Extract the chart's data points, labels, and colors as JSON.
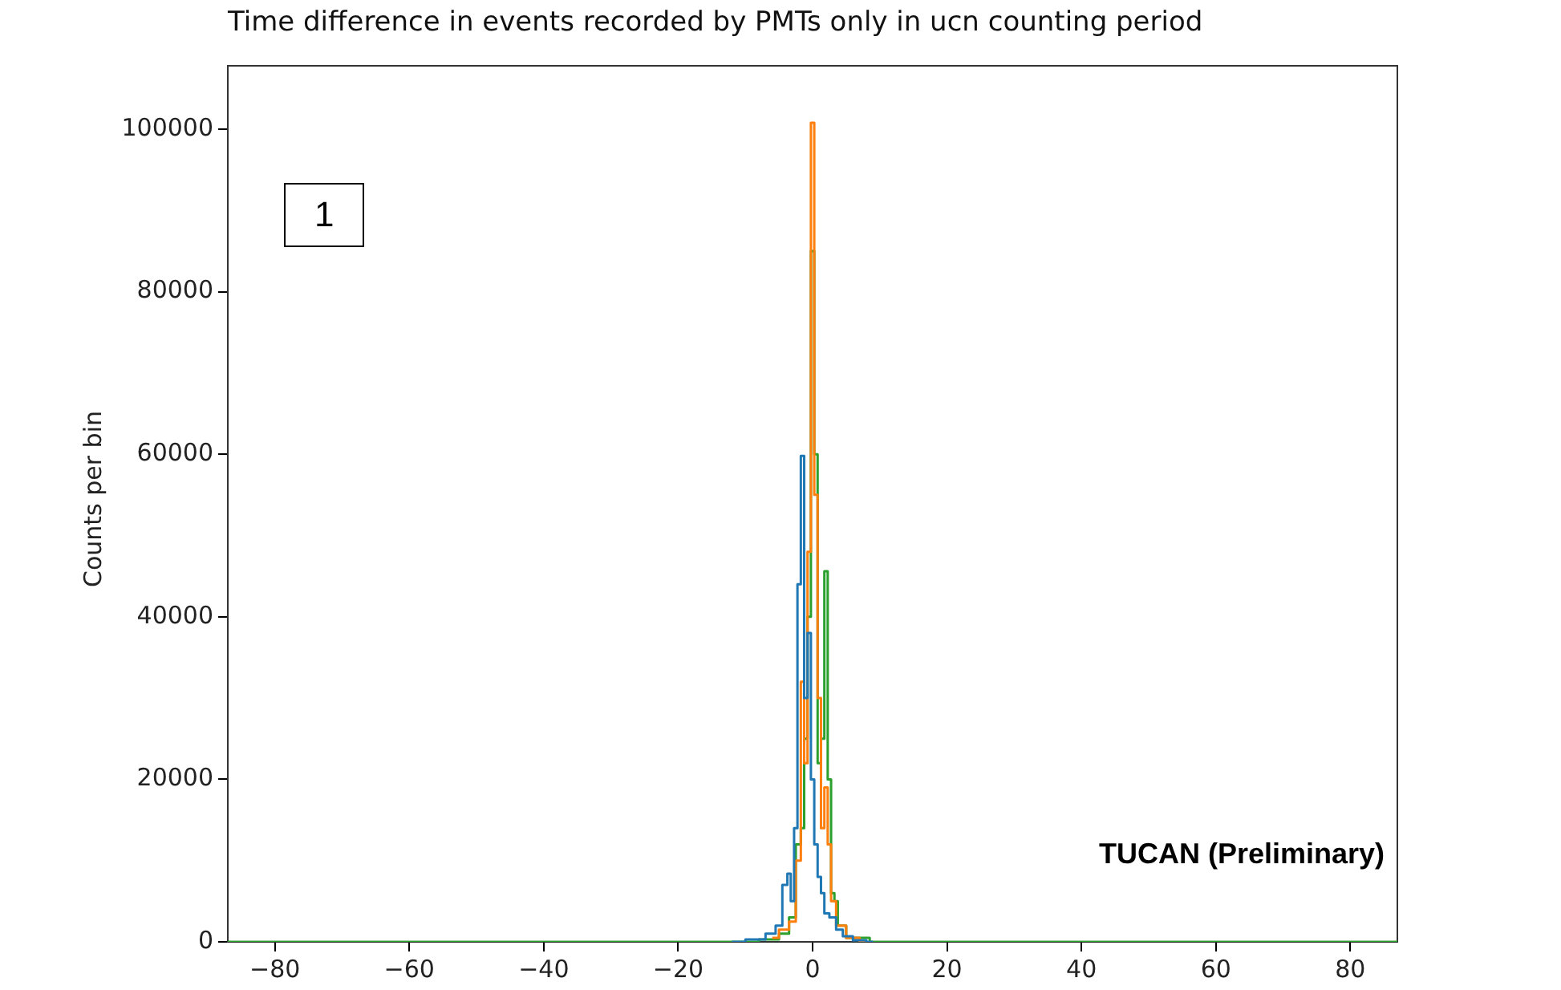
{
  "chart_data": {
    "type": "step",
    "title": "Time difference in events recorded by PMTs only in ucn counting period",
    "ylabel": "Counts per bin",
    "xlim": [
      -87,
      87
    ],
    "xticks": [
      -80,
      -60,
      -40,
      -20,
      0,
      20,
      40,
      60,
      80
    ],
    "ylim": [
      0,
      107800
    ],
    "yticks": [
      0,
      20000,
      40000,
      60000,
      80000,
      100000
    ],
    "grid": false,
    "legend": false,
    "marker": "none",
    "annotations": [
      "1",
      "TUCAN (Preliminary)"
    ],
    "series": [
      {
        "color": "#1f77b4",
        "x": [
          -12,
          -8,
          -6,
          -5,
          -4,
          -3.5,
          -3,
          -2.5,
          -2,
          -1.5,
          -1,
          -0.5,
          0,
          0.5,
          1,
          1.5,
          2,
          3,
          4,
          5,
          7,
          9
        ],
        "values": [
          0,
          300,
          1000,
          2000,
          7000,
          8400,
          5000,
          14000,
          44000,
          59800,
          30000,
          38000,
          20000,
          12000,
          8000,
          6000,
          3500,
          3000,
          1500,
          700,
          200,
          0
        ]
      },
      {
        "color": "#ff7f0e",
        "x": [
          -6,
          -4,
          -3,
          -2,
          -1.5,
          -1,
          -0.5,
          0,
          0.5,
          1,
          1.5,
          2,
          2.5,
          3,
          4,
          6,
          8
        ],
        "values": [
          500,
          1500,
          2500,
          10000,
          32000,
          22000,
          48000,
          100800,
          55000,
          30000,
          14000,
          19000,
          12000,
          5000,
          2000,
          500,
          0
        ]
      },
      {
        "color": "#2ca02c",
        "x": [
          -87,
          -10,
          -6,
          -4,
          -3,
          -2,
          -1.5,
          -1,
          -0.5,
          0,
          0.5,
          1,
          1.5,
          2,
          2.5,
          3,
          3.5,
          4,
          6,
          11,
          87
        ],
        "values": [
          0,
          0,
          300,
          1000,
          3000,
          12000,
          14000,
          25000,
          40000,
          85000,
          60000,
          22000,
          25000,
          45600,
          20000,
          6000,
          5000,
          2000,
          500,
          0,
          0
        ]
      }
    ]
  }
}
